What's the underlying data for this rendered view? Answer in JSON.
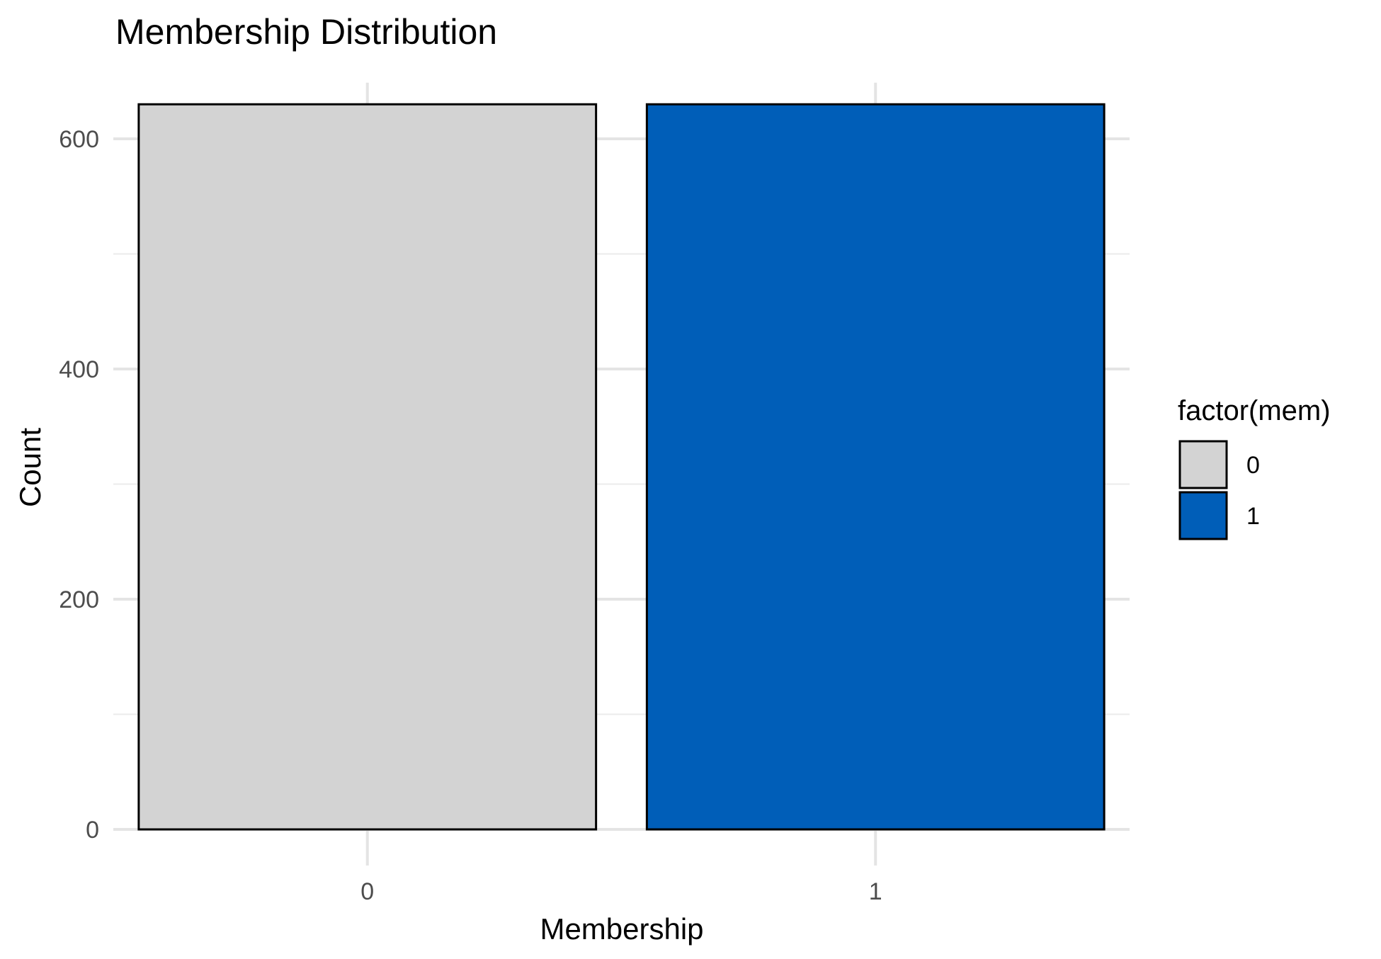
{
  "chart_data": {
    "type": "bar",
    "title": "Membership Distribution",
    "xlabel": "Membership",
    "ylabel": "Count",
    "categories": [
      "0",
      "1"
    ],
    "values": [
      630,
      630
    ],
    "ylim": [
      0,
      650
    ],
    "yticks": [
      0,
      200,
      400,
      600
    ],
    "grid": true,
    "legend": {
      "title": "factor(mem)",
      "placement": "right",
      "items": [
        {
          "label": "0",
          "color": "#d3d3d3"
        },
        {
          "label": "1",
          "color": "#005eb8"
        }
      ]
    },
    "colors": [
      "#d3d3d3",
      "#005eb8"
    ]
  }
}
